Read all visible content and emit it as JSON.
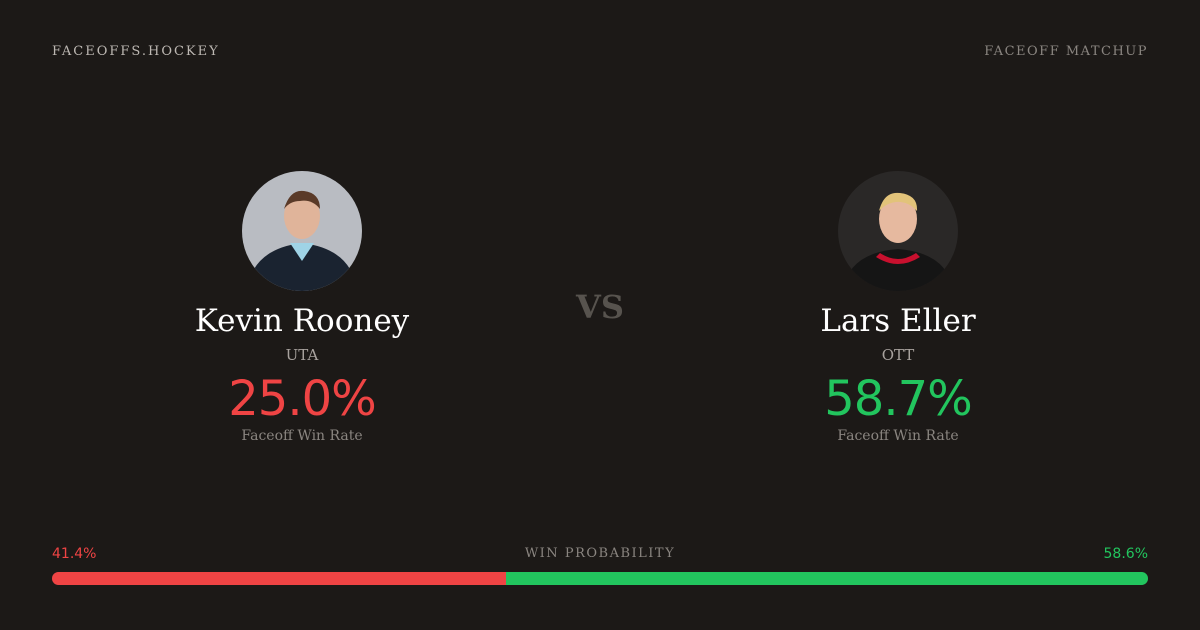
{
  "header": {
    "brand": "FACEOFFS.HOCKEY",
    "kind": "FACEOFF MATCHUP"
  },
  "players": [
    {
      "name": "Kevin Rooney",
      "team": "UTA",
      "rate": "25.0%",
      "rate_label": "Faceoff Win Rate",
      "color": "#ef4444"
    },
    {
      "name": "Lars Eller",
      "team": "OTT",
      "rate": "58.7%",
      "rate_label": "Faceoff Win Rate",
      "color": "#22c55e"
    }
  ],
  "vs": "VS",
  "probability": {
    "label": "WIN PROBABILITY",
    "left": {
      "value": 41.4,
      "label": "41.4%",
      "color": "#ef4444"
    },
    "right": {
      "value": 58.6,
      "label": "58.6%",
      "color": "#22c55e"
    }
  }
}
